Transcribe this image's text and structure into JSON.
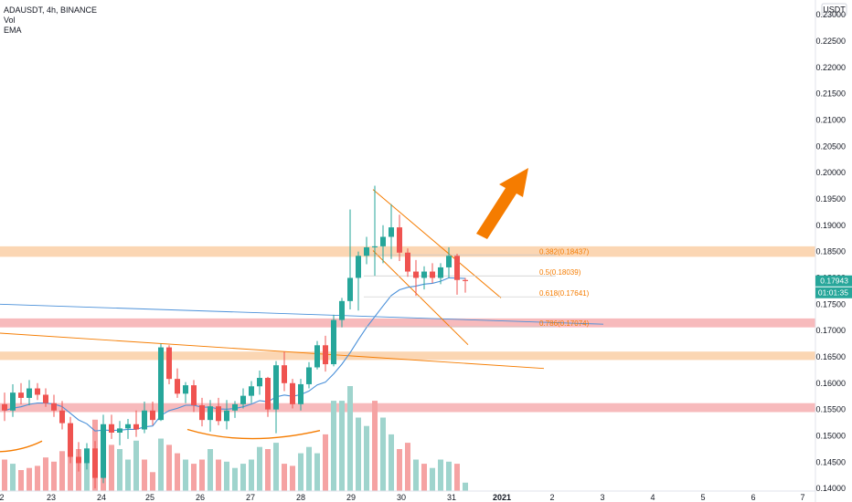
{
  "header": {
    "symbol_line": "ADAUSDT, 4h, BINANCE",
    "vol_label": "Vol",
    "ema_label": "EMA"
  },
  "price_axis": {
    "currency": "USDT",
    "ticks": [
      "0.23000",
      "0.22500",
      "0.22000",
      "0.21500",
      "0.21000",
      "0.20500",
      "0.20000",
      "0.19500",
      "0.19000",
      "0.18500",
      "0.18000",
      "0.17500",
      "0.17000",
      "0.16500",
      "0.16000",
      "0.15500",
      "0.15000",
      "0.14500",
      "0.14000"
    ],
    "last_price": "0.17943",
    "countdown": "01:01:35"
  },
  "chart_data": {
    "type": "candlestick",
    "ylim": [
      0.1395,
      0.2328
    ],
    "x_tick_labels": [
      "2",
      "23",
      "24",
      "25",
      "26",
      "27",
      "28",
      "29",
      "30",
      "31",
      "2021",
      "2",
      "3",
      "4",
      "5",
      "6",
      "7"
    ],
    "candles": [
      {
        "o": 0.156,
        "h": 0.1582,
        "l": 0.1528,
        "c": 0.1548
      },
      {
        "o": 0.1548,
        "h": 0.1598,
        "l": 0.1536,
        "c": 0.1582
      },
      {
        "o": 0.1582,
        "h": 0.16,
        "l": 0.156,
        "c": 0.1572
      },
      {
        "o": 0.1572,
        "h": 0.1606,
        "l": 0.1558,
        "c": 0.159
      },
      {
        "o": 0.159,
        "h": 0.16,
        "l": 0.1568,
        "c": 0.1578
      },
      {
        "o": 0.1578,
        "h": 0.159,
        "l": 0.1555,
        "c": 0.1562
      },
      {
        "o": 0.1562,
        "h": 0.1578,
        "l": 0.1536,
        "c": 0.1548
      },
      {
        "o": 0.1548,
        "h": 0.1566,
        "l": 0.1512,
        "c": 0.1524
      },
      {
        "o": 0.1524,
        "h": 0.1536,
        "l": 0.1448,
        "c": 0.146
      },
      {
        "o": 0.146,
        "h": 0.1488,
        "l": 0.1432,
        "c": 0.1448
      },
      {
        "o": 0.1448,
        "h": 0.1486,
        "l": 0.1436,
        "c": 0.1476
      },
      {
        "o": 0.1476,
        "h": 0.149,
        "l": 0.14,
        "c": 0.142
      },
      {
        "o": 0.142,
        "h": 0.154,
        "l": 0.141,
        "c": 0.1522
      },
      {
        "o": 0.1522,
        "h": 0.154,
        "l": 0.1494,
        "c": 0.1506
      },
      {
        "o": 0.1506,
        "h": 0.1528,
        "l": 0.1482,
        "c": 0.1514
      },
      {
        "o": 0.1514,
        "h": 0.1532,
        "l": 0.1494,
        "c": 0.1522
      },
      {
        "o": 0.1522,
        "h": 0.1548,
        "l": 0.1498,
        "c": 0.1512
      },
      {
        "o": 0.1512,
        "h": 0.1565,
        "l": 0.1505,
        "c": 0.1548
      },
      {
        "o": 0.1548,
        "h": 0.1565,
        "l": 0.152,
        "c": 0.153
      },
      {
        "o": 0.153,
        "h": 0.1675,
        "l": 0.1528,
        "c": 0.1668
      },
      {
        "o": 0.1668,
        "h": 0.1672,
        "l": 0.1598,
        "c": 0.1608
      },
      {
        "o": 0.1608,
        "h": 0.1628,
        "l": 0.1572,
        "c": 0.158
      },
      {
        "o": 0.158,
        "h": 0.1602,
        "l": 0.1562,
        "c": 0.1596
      },
      {
        "o": 0.1596,
        "h": 0.1606,
        "l": 0.1545,
        "c": 0.1558
      },
      {
        "o": 0.1558,
        "h": 0.1572,
        "l": 0.1518,
        "c": 0.153
      },
      {
        "o": 0.153,
        "h": 0.1568,
        "l": 0.1508,
        "c": 0.1556
      },
      {
        "o": 0.1556,
        "h": 0.1572,
        "l": 0.152,
        "c": 0.1528
      },
      {
        "o": 0.1528,
        "h": 0.1568,
        "l": 0.1512,
        "c": 0.1548
      },
      {
        "o": 0.1548,
        "h": 0.1566,
        "l": 0.1534,
        "c": 0.156
      },
      {
        "o": 0.156,
        "h": 0.159,
        "l": 0.1552,
        "c": 0.1576
      },
      {
        "o": 0.1576,
        "h": 0.1604,
        "l": 0.1562,
        "c": 0.1594
      },
      {
        "o": 0.1594,
        "h": 0.1624,
        "l": 0.1578,
        "c": 0.161
      },
      {
        "o": 0.161,
        "h": 0.1612,
        "l": 0.1536,
        "c": 0.155
      },
      {
        "o": 0.155,
        "h": 0.1642,
        "l": 0.1505,
        "c": 0.1634
      },
      {
        "o": 0.1634,
        "h": 0.166,
        "l": 0.1585,
        "c": 0.16
      },
      {
        "o": 0.16,
        "h": 0.1608,
        "l": 0.1552,
        "c": 0.156
      },
      {
        "o": 0.156,
        "h": 0.1608,
        "l": 0.1548,
        "c": 0.1598
      },
      {
        "o": 0.1598,
        "h": 0.164,
        "l": 0.159,
        "c": 0.163
      },
      {
        "o": 0.163,
        "h": 0.168,
        "l": 0.1626,
        "c": 0.1672
      },
      {
        "o": 0.1672,
        "h": 0.169,
        "l": 0.1622,
        "c": 0.1636
      },
      {
        "o": 0.1636,
        "h": 0.173,
        "l": 0.1632,
        "c": 0.172
      },
      {
        "o": 0.172,
        "h": 0.1762,
        "l": 0.1706,
        "c": 0.1756
      },
      {
        "o": 0.1756,
        "h": 0.193,
        "l": 0.174,
        "c": 0.18
      },
      {
        "o": 0.18,
        "h": 0.185,
        "l": 0.1738,
        "c": 0.1842
      },
      {
        "o": 0.1842,
        "h": 0.1878,
        "l": 0.1826,
        "c": 0.1858
      },
      {
        "o": 0.1858,
        "h": 0.1975,
        "l": 0.1804,
        "c": 0.186
      },
      {
        "o": 0.186,
        "h": 0.19,
        "l": 0.1828,
        "c": 0.1878
      },
      {
        "o": 0.1878,
        "h": 0.194,
        "l": 0.1836,
        "c": 0.1896
      },
      {
        "o": 0.1896,
        "h": 0.192,
        "l": 0.1832,
        "c": 0.1848
      },
      {
        "o": 0.1848,
        "h": 0.1856,
        "l": 0.1802,
        "c": 0.1812
      },
      {
        "o": 0.1812,
        "h": 0.1834,
        "l": 0.1766,
        "c": 0.18
      },
      {
        "o": 0.18,
        "h": 0.1822,
        "l": 0.1778,
        "c": 0.1812
      },
      {
        "o": 0.1812,
        "h": 0.1828,
        "l": 0.179,
        "c": 0.18
      },
      {
        "o": 0.18,
        "h": 0.1828,
        "l": 0.1788,
        "c": 0.182
      },
      {
        "o": 0.182,
        "h": 0.1858,
        "l": 0.18,
        "c": 0.1842
      },
      {
        "o": 0.1842,
        "h": 0.1846,
        "l": 0.1768,
        "c": 0.1796
      },
      {
        "o": 0.1796,
        "h": 0.18,
        "l": 0.1772,
        "c": 0.1794
      }
    ],
    "volumes": [
      {
        "v": 0.3,
        "up": false
      },
      {
        "v": 0.26,
        "up": true
      },
      {
        "v": 0.2,
        "up": false
      },
      {
        "v": 0.22,
        "up": false
      },
      {
        "v": 0.24,
        "up": false
      },
      {
        "v": 0.32,
        "up": false
      },
      {
        "v": 0.28,
        "up": false
      },
      {
        "v": 0.38,
        "up": false
      },
      {
        "v": 0.48,
        "up": false
      },
      {
        "v": 0.4,
        "up": false
      },
      {
        "v": 0.36,
        "up": true
      },
      {
        "v": 0.68,
        "up": false
      },
      {
        "v": 0.52,
        "up": false
      },
      {
        "v": 0.44,
        "up": false
      },
      {
        "v": 0.4,
        "up": true
      },
      {
        "v": 0.3,
        "up": true
      },
      {
        "v": 0.48,
        "up": true
      },
      {
        "v": 0.3,
        "up": false
      },
      {
        "v": 0.18,
        "up": false
      },
      {
        "v": 0.5,
        "up": true
      },
      {
        "v": 0.44,
        "up": false
      },
      {
        "v": 0.36,
        "up": false
      },
      {
        "v": 0.3,
        "up": true
      },
      {
        "v": 0.26,
        "up": false
      },
      {
        "v": 0.3,
        "up": false
      },
      {
        "v": 0.4,
        "up": true
      },
      {
        "v": 0.3,
        "up": false
      },
      {
        "v": 0.28,
        "up": true
      },
      {
        "v": 0.22,
        "up": true
      },
      {
        "v": 0.26,
        "up": true
      },
      {
        "v": 0.3,
        "up": true
      },
      {
        "v": 0.42,
        "up": true
      },
      {
        "v": 0.4,
        "up": false
      },
      {
        "v": 0.46,
        "up": true
      },
      {
        "v": 0.26,
        "up": false
      },
      {
        "v": 0.24,
        "up": false
      },
      {
        "v": 0.36,
        "up": true
      },
      {
        "v": 0.42,
        "up": true
      },
      {
        "v": 0.36,
        "up": true
      },
      {
        "v": 0.54,
        "up": false
      },
      {
        "v": 0.86,
        "up": true
      },
      {
        "v": 0.86,
        "up": true
      },
      {
        "v": 1.0,
        "up": true
      },
      {
        "v": 0.7,
        "up": true
      },
      {
        "v": 0.62,
        "up": true
      },
      {
        "v": 0.86,
        "up": false
      },
      {
        "v": 0.7,
        "up": true
      },
      {
        "v": 0.54,
        "up": true
      },
      {
        "v": 0.4,
        "up": false
      },
      {
        "v": 0.46,
        "up": false
      },
      {
        "v": 0.3,
        "up": true
      },
      {
        "v": 0.26,
        "up": false
      },
      {
        "v": 0.22,
        "up": true
      },
      {
        "v": 0.3,
        "up": true
      },
      {
        "v": 0.28,
        "up": true
      },
      {
        "v": 0.26,
        "up": false
      },
      {
        "v": 0.08,
        "up": true
      }
    ],
    "fib_levels": [
      {
        "label": "0.382(0.18437)",
        "value": 0.18437
      },
      {
        "label": "0.5(0.18039)",
        "value": 0.18039
      },
      {
        "label": "0.618(0.17641)",
        "value": 0.17641
      },
      {
        "label": "0.786(0.17074)",
        "value": 0.17074
      }
    ],
    "zones": [
      {
        "color": "orange",
        "from": 0.184,
        "to": 0.186
      },
      {
        "color": "red",
        "from": 0.1706,
        "to": 0.1723
      },
      {
        "color": "orange",
        "from": 0.1644,
        "to": 0.166
      },
      {
        "color": "red",
        "from": 0.1545,
        "to": 0.1562
      }
    ],
    "grid": false
  },
  "colors": {
    "up": "#26a69a",
    "down": "#ef5350",
    "vol_up": "#9fd4cd",
    "vol_down": "#f5a3a3",
    "ema": "#4a90d9",
    "trend": "#f57c00",
    "zone_orange": "#f9c89a",
    "zone_red": "#f4a3a6",
    "axis_tag": "#26a69a",
    "arrow": "#f57c00"
  }
}
